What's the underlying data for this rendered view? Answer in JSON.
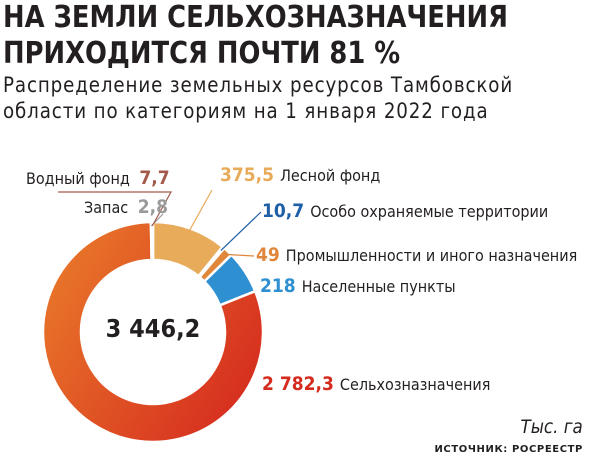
{
  "header": {
    "title_line1": "НА ЗЕМЛИ СЕЛЬХОЗНАЗНАЧЕНИЯ",
    "title_line2": "ПРИХОДИТСЯ ПОЧТИ 81 %",
    "subtitle_line1": "Распределение земельных ресурсов Тамбовской",
    "subtitle_line2": "области по категориям на 1 января 2022 года"
  },
  "chart_data": {
    "type": "pie",
    "variant": "donut",
    "total": 3446.2,
    "total_label": "3 446,2",
    "unit": "Тыс. га",
    "slices": [
      {
        "name": "Лесной фонд",
        "value": 375.5,
        "value_label": "375,5",
        "color": "#e8ab5a"
      },
      {
        "name": "Особо охраняемые территории",
        "value": 10.7,
        "value_label": "10,7",
        "color": "#1f5fa8"
      },
      {
        "name": "Промышленности и иного назначения",
        "value": 49,
        "value_label": "49",
        "color": "#e0873c"
      },
      {
        "name": "Населенные пункты",
        "value": 218,
        "value_label": "218",
        "color": "#2e8fd1"
      },
      {
        "name": "Сельхозназначения",
        "value": 2782.3,
        "value_label": "2 782,3",
        "color": "#d52a1e"
      },
      {
        "name": "Запас",
        "value": 2.8,
        "value_label": "2,8",
        "color": "#b5b5b5"
      },
      {
        "name": "Водный фонд",
        "value": 7.7,
        "value_label": "7,7",
        "color": "#a35a4a"
      }
    ]
  },
  "footer": {
    "source": "ИСТОЧНИК: РОСРЕЕСТР"
  }
}
